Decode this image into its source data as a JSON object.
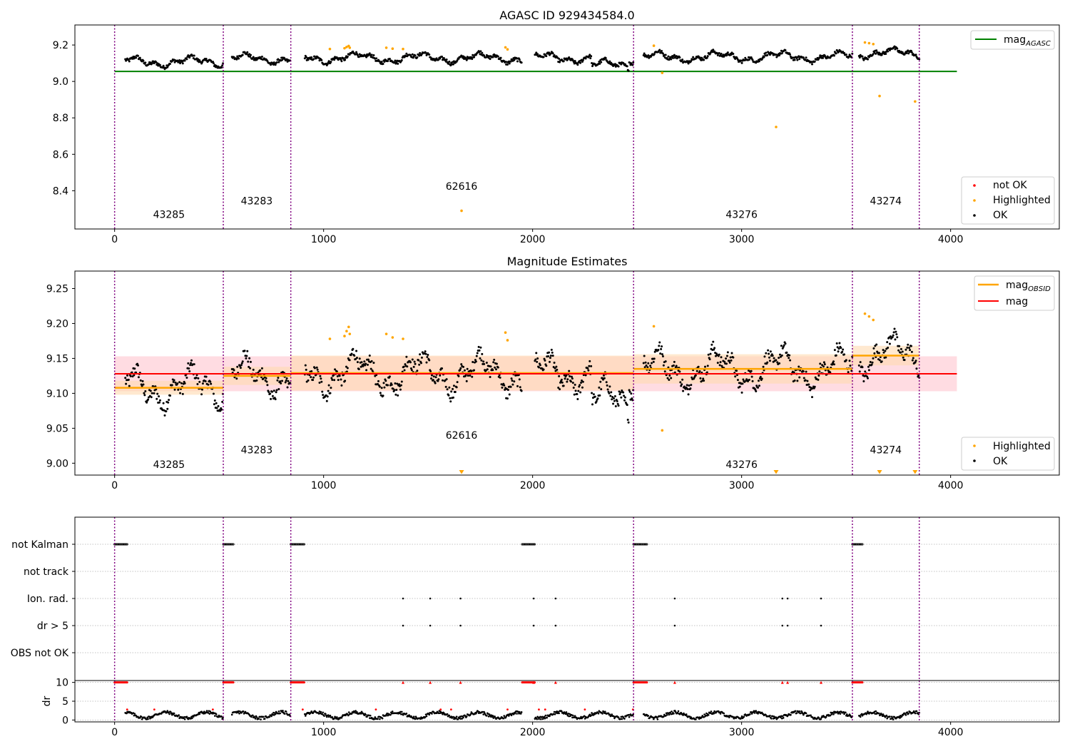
{
  "panel1": {
    "title": "AGASC ID 929434584.0",
    "xlim": [
      -190,
      4520
    ],
    "ylim": [
      8.19,
      9.31
    ],
    "xticks": [
      0,
      1000,
      2000,
      3000,
      4000
    ],
    "yticks": [
      8.4,
      8.6,
      8.8,
      9.0,
      9.2
    ],
    "legend_top": [
      {
        "label": "mag",
        "sub": "AGASC",
        "color": "#008000"
      }
    ],
    "legend_bottom": [
      {
        "label": "not OK",
        "color": "#ff0000"
      },
      {
        "label": "Highlighted",
        "color": "#ffa500"
      },
      {
        "label": "OK",
        "color": "#000000"
      }
    ],
    "mag_agasc": 9.055
  },
  "panel2": {
    "title": "Magnitude Estimates",
    "xlim": [
      -190,
      4520
    ],
    "ylim": [
      8.983,
      9.275
    ],
    "xticks": [
      0,
      1000,
      2000,
      3000,
      4000
    ],
    "yticks": [
      9.0,
      9.05,
      9.1,
      9.15,
      9.2,
      9.25
    ],
    "legend_top": [
      {
        "label": "mag",
        "sub": "OBSID",
        "color": "#ffa500"
      },
      {
        "label": "mag",
        "sub": "",
        "color": "#ff0000"
      }
    ],
    "legend_bottom": [
      {
        "label": "Highlighted",
        "color": "#ffa500"
      },
      {
        "label": "OK",
        "color": "#000000"
      }
    ],
    "mag": 9.128,
    "mag_band": [
      9.103,
      9.153
    ]
  },
  "panel3": {
    "categories": [
      "not Kalman",
      "not track",
      "Ion. rad.",
      "dr > 5",
      "OBS not OK"
    ],
    "xlim": [
      -190,
      4520
    ]
  },
  "panel4": {
    "ylabel": "dr",
    "ylim": [
      -0.5,
      10.5
    ],
    "yticks": [
      0,
      5,
      10
    ],
    "xticks": [
      0,
      1000,
      2000,
      3000,
      4000
    ],
    "xlim": [
      -190,
      4520
    ]
  },
  "chart_data": {
    "type": "scatter",
    "x_domain": [
      0,
      4030
    ],
    "observations": [
      {
        "obsid": "43285",
        "start": 0,
        "end": 520,
        "label_x": 260,
        "mag_obsid": 9.108,
        "band": [
          9.098,
          9.118
        ],
        "label_mag": 8.25,
        "label_est": 8.993
      },
      {
        "obsid": "43283",
        "start": 520,
        "end": 843,
        "label_x": 680,
        "mag_obsid": 9.125,
        "band": [
          9.112,
          9.138
        ],
        "label_mag": 8.325,
        "label_est": 9.014
      },
      {
        "obsid": "62616",
        "start": 843,
        "end": 2483,
        "label_x": 1660,
        "mag_obsid": 9.129,
        "band": [
          9.104,
          9.154
        ],
        "label_mag": 8.405,
        "label_est": 9.035
      },
      {
        "obsid": "43276",
        "start": 2483,
        "end": 3530,
        "label_x": 3000,
        "mag_obsid": 9.135,
        "band": [
          9.114,
          9.156
        ],
        "label_mag": 8.25,
        "label_est": 8.993
      },
      {
        "obsid": "43274",
        "start": 3530,
        "end": 3850,
        "label_x": 3690,
        "mag_obsid": 9.154,
        "band": [
          9.14,
          9.168
        ],
        "label_mag": 8.325,
        "label_est": 9.014
      }
    ],
    "gaps": [
      [
        0,
        50
      ],
      [
        520,
        560
      ],
      [
        843,
        910
      ],
      [
        1950,
        2010
      ],
      [
        2483,
        2530
      ],
      [
        3530,
        3560
      ]
    ],
    "highlighted_points": [
      {
        "x": 1030,
        "y": 9.178
      },
      {
        "x": 1100,
        "y": 9.182
      },
      {
        "x": 1110,
        "y": 9.189
      },
      {
        "x": 1120,
        "y": 9.195
      },
      {
        "x": 1125,
        "y": 9.185
      },
      {
        "x": 1300,
        "y": 9.185
      },
      {
        "x": 1330,
        "y": 9.18
      },
      {
        "x": 1380,
        "y": 9.178
      },
      {
        "x": 1870,
        "y": 9.187
      },
      {
        "x": 1880,
        "y": 9.176
      },
      {
        "x": 2580,
        "y": 9.196
      },
      {
        "x": 2620,
        "y": 9.047
      },
      {
        "x": 3590,
        "y": 9.214
      },
      {
        "x": 3610,
        "y": 9.21
      },
      {
        "x": 3630,
        "y": 9.205
      }
    ],
    "highlighted_low": [
      {
        "x": 1660,
        "y": 8.29
      },
      {
        "x": 3165,
        "y": 8.75
      },
      {
        "x": 3660,
        "y": 8.92
      },
      {
        "x": 3830,
        "y": 8.89
      }
    ],
    "flags": {
      "not Kalman": [
        [
          0,
          60
        ],
        [
          520,
          570
        ],
        [
          843,
          910
        ],
        [
          1950,
          2010
        ],
        [
          2483,
          2550
        ],
        [
          3530,
          3580
        ]
      ],
      "not track": [],
      "Ion. rad.": [
        1380,
        1510,
        1655,
        2005,
        2110,
        2680,
        3195,
        3220,
        3380
      ],
      "dr > 5": [
        1380,
        1510,
        1655,
        2005,
        2110,
        2680,
        3195,
        3220,
        3380
      ],
      "OBS not OK": []
    }
  },
  "colors": {
    "ok": "#000000",
    "highlighted": "#ffa500",
    "not_ok": "#ff0000",
    "agasc_line": "#008000",
    "mag_line": "#ff0000",
    "mag_band": "#ffc0cb",
    "obsid_line": "#ffa500",
    "obsid_band": "#ffdab0",
    "obs_divider": "#800080"
  }
}
